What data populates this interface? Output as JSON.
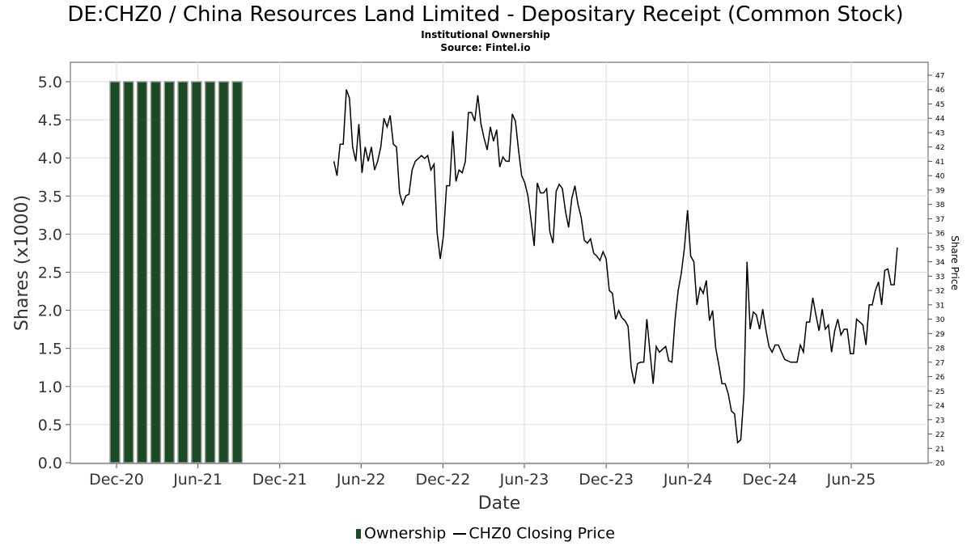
{
  "title": "DE:CHZ0 / China Resources Land Limited - Depositary Receipt (Common Stock)",
  "subtitle1": "Institutional Ownership",
  "subtitle2": "Source: Fintel.io",
  "colors": {
    "bar": "#1a4a26",
    "bar_edge": "#9a9a9a",
    "line": "#000000",
    "grid": "#dddddd"
  },
  "chart_data": {
    "type": "bar",
    "title": "DE:CHZ0 / China Resources Land Limited - Depositary Receipt (Common Stock)",
    "xlabel": "Date",
    "ylabel": "Shares (x1000)",
    "y2label": "Share Price",
    "grid": true,
    "legend_position": "bottom",
    "x_ticks": [
      "Dec-20",
      "Jun-21",
      "Dec-21",
      "Jun-22",
      "Dec-22",
      "Jun-23",
      "Dec-23",
      "Jun-24",
      "Dec-24",
      "Jun-25"
    ],
    "y_ticks": [
      "0.0",
      "0.5",
      "1.0",
      "1.5",
      "2.0",
      "2.5",
      "3.0",
      "3.5",
      "4.0",
      "4.5",
      "5.0"
    ],
    "y2_ticks": [
      "20",
      "21",
      "22",
      "23",
      "24",
      "25",
      "26",
      "27",
      "28",
      "29",
      "30",
      "31",
      "32",
      "33",
      "34",
      "35",
      "36",
      "37",
      "38",
      "39",
      "40",
      "41",
      "42",
      "43",
      "44",
      "45",
      "46",
      "47"
    ],
    "ylim": [
      0,
      5
    ],
    "y2lim": [
      20,
      47
    ],
    "xlim": [
      "2020-10-01",
      "2025-10-10"
    ],
    "series": [
      {
        "name": "Ownership",
        "type": "bar",
        "x": [
          "2020-12-01",
          "2021-01-01",
          "2021-02-01",
          "2021-03-01",
          "2021-04-01",
          "2021-05-01",
          "2021-06-01",
          "2021-07-01",
          "2021-08-01",
          "2021-09-01"
        ],
        "values": [
          5,
          5,
          5,
          5,
          5,
          5,
          5,
          5,
          5,
          5
        ]
      },
      {
        "name": "CHZ0 Closing Price",
        "type": "line",
        "x": [
          "2022-04-01",
          "2022-04-08",
          "2022-04-15",
          "2022-04-22",
          "2022-04-29",
          "2022-05-06",
          "2022-05-13",
          "2022-05-20",
          "2022-05-27",
          "2022-06-03",
          "2022-06-10",
          "2022-06-17",
          "2022-06-24",
          "2022-07-01",
          "2022-07-08",
          "2022-07-15",
          "2022-07-22",
          "2022-07-29",
          "2022-08-05",
          "2022-08-12",
          "2022-08-19",
          "2022-08-26",
          "2022-09-02",
          "2022-09-09",
          "2022-09-16",
          "2022-09-23",
          "2022-09-30",
          "2022-10-07",
          "2022-10-14",
          "2022-10-21",
          "2022-10-28",
          "2022-11-04",
          "2022-11-11",
          "2022-11-18",
          "2022-11-25",
          "2022-12-02",
          "2022-12-09",
          "2022-12-16",
          "2022-12-23",
          "2022-12-30",
          "2023-01-06",
          "2023-01-13",
          "2023-01-20",
          "2023-01-27",
          "2023-02-03",
          "2023-02-10",
          "2023-02-17",
          "2023-02-24",
          "2023-03-03",
          "2023-03-10",
          "2023-03-17",
          "2023-03-24",
          "2023-03-31",
          "2023-04-07",
          "2023-04-14",
          "2023-04-21",
          "2023-04-28",
          "2023-05-05",
          "2023-05-12",
          "2023-05-19",
          "2023-05-26",
          "2023-06-02",
          "2023-06-09",
          "2023-06-16",
          "2023-06-23",
          "2023-06-30",
          "2023-07-07",
          "2023-07-14",
          "2023-07-21",
          "2023-07-28",
          "2023-08-04",
          "2023-08-11",
          "2023-08-18",
          "2023-08-25",
          "2023-09-01",
          "2023-09-08",
          "2023-09-15",
          "2023-09-22",
          "2023-09-29",
          "2023-10-06",
          "2023-10-13",
          "2023-10-20",
          "2023-10-27",
          "2023-11-03",
          "2023-11-10",
          "2023-11-17",
          "2023-11-24",
          "2023-12-01",
          "2023-12-08",
          "2023-12-15",
          "2023-12-22",
          "2023-12-29",
          "2024-01-05",
          "2024-01-12",
          "2024-01-19",
          "2024-01-26",
          "2024-02-02",
          "2024-02-09",
          "2024-02-16",
          "2024-02-23",
          "2024-03-01",
          "2024-03-08",
          "2024-03-15",
          "2024-03-22",
          "2024-03-29",
          "2024-04-05",
          "2024-04-12",
          "2024-04-19",
          "2024-04-26",
          "2024-05-03",
          "2024-05-10",
          "2024-05-17",
          "2024-05-24",
          "2024-05-31",
          "2024-06-07",
          "2024-06-14",
          "2024-06-21",
          "2024-06-28",
          "2024-07-05",
          "2024-07-12",
          "2024-07-19",
          "2024-07-26",
          "2024-08-02",
          "2024-08-09",
          "2024-08-16",
          "2024-08-23",
          "2024-08-30",
          "2024-09-06",
          "2024-09-13",
          "2024-09-20",
          "2024-09-27",
          "2024-10-04",
          "2024-10-11",
          "2024-10-18",
          "2024-10-25",
          "2024-11-01",
          "2024-11-08",
          "2024-11-15",
          "2024-11-22",
          "2024-11-29",
          "2024-12-06",
          "2024-12-13",
          "2024-12-20",
          "2025-01-03",
          "2025-01-17",
          "2025-01-31",
          "2025-02-07",
          "2025-02-14",
          "2025-02-21",
          "2025-02-28",
          "2025-03-07",
          "2025-03-14",
          "2025-03-21",
          "2025-03-28",
          "2025-04-04",
          "2025-04-11",
          "2025-04-18",
          "2025-04-25",
          "2025-05-02",
          "2025-05-09",
          "2025-05-16",
          "2025-05-23",
          "2025-05-30",
          "2025-06-06",
          "2025-06-13",
          "2025-06-20",
          "2025-06-27",
          "2025-07-04",
          "2025-07-11",
          "2025-07-18",
          "2025-07-25",
          "2025-08-01",
          "2025-08-08",
          "2025-08-15",
          "2025-08-22",
          "2025-08-29",
          "2025-09-05",
          "2025-09-12"
        ],
        "values": [
          41,
          40,
          42.2,
          42.2,
          46,
          45.4,
          42,
          41,
          43.6,
          40.2,
          42,
          41,
          42,
          40.4,
          41,
          42,
          44,
          43.4,
          44.2,
          42.2,
          42,
          38.8,
          38,
          38.6,
          38.7,
          40.4,
          41,
          41.2,
          41.4,
          41.2,
          41.4,
          40.4,
          40.8,
          36,
          34.2,
          35.8,
          39.3,
          39.3,
          43.1,
          39.6,
          40.4,
          40.2,
          41,
          44.4,
          44.4,
          43.8,
          45.6,
          43.6,
          42.6,
          41.8,
          43.4,
          42.4,
          43.2,
          40.6,
          41.3,
          41,
          41,
          44.3,
          43.8,
          41.8,
          40,
          39.5,
          38.6,
          36.9,
          35.1,
          39.5,
          38.8,
          38.8,
          39.1,
          36.1,
          35.3,
          38.9,
          39.4,
          39.1,
          37.5,
          36.4,
          38.4,
          39.3,
          38,
          37.1,
          35.5,
          35.3,
          35.6,
          34.6,
          34.4,
          34.1,
          34.7,
          34.2,
          32,
          31.8,
          30,
          30.6,
          30.1,
          29.9,
          29.5,
          26.6,
          25.5,
          26.9,
          27,
          27,
          30,
          27.7,
          25.5,
          28.1,
          27.7,
          27.9,
          28.1,
          27.1,
          27,
          30,
          32,
          33.2,
          35,
          37.6,
          34.4,
          34,
          31,
          32.2,
          31.8,
          32.7,
          29.9,
          30.6,
          28,
          26.8,
          25.5,
          25.5,
          24.8,
          23.6,
          23.4,
          21.4,
          21.6,
          24.8,
          34,
          29.3,
          30.5,
          30.3,
          29.3,
          30.7,
          29.3,
          28.1,
          27.7,
          28.2,
          28.2,
          27.2,
          27,
          27,
          28.2,
          27.7,
          29.8,
          29.8,
          31.5,
          30.3,
          29.2,
          30.7,
          29.3,
          29.6,
          27.7,
          29.2,
          30,
          28.9,
          29.3,
          29.3,
          27.6,
          27.6,
          30,
          29.8,
          29.6,
          28.2,
          31,
          31,
          32,
          32.6,
          31,
          33.4,
          33.5,
          32.4,
          32.4,
          35
        ]
      }
    ]
  }
}
